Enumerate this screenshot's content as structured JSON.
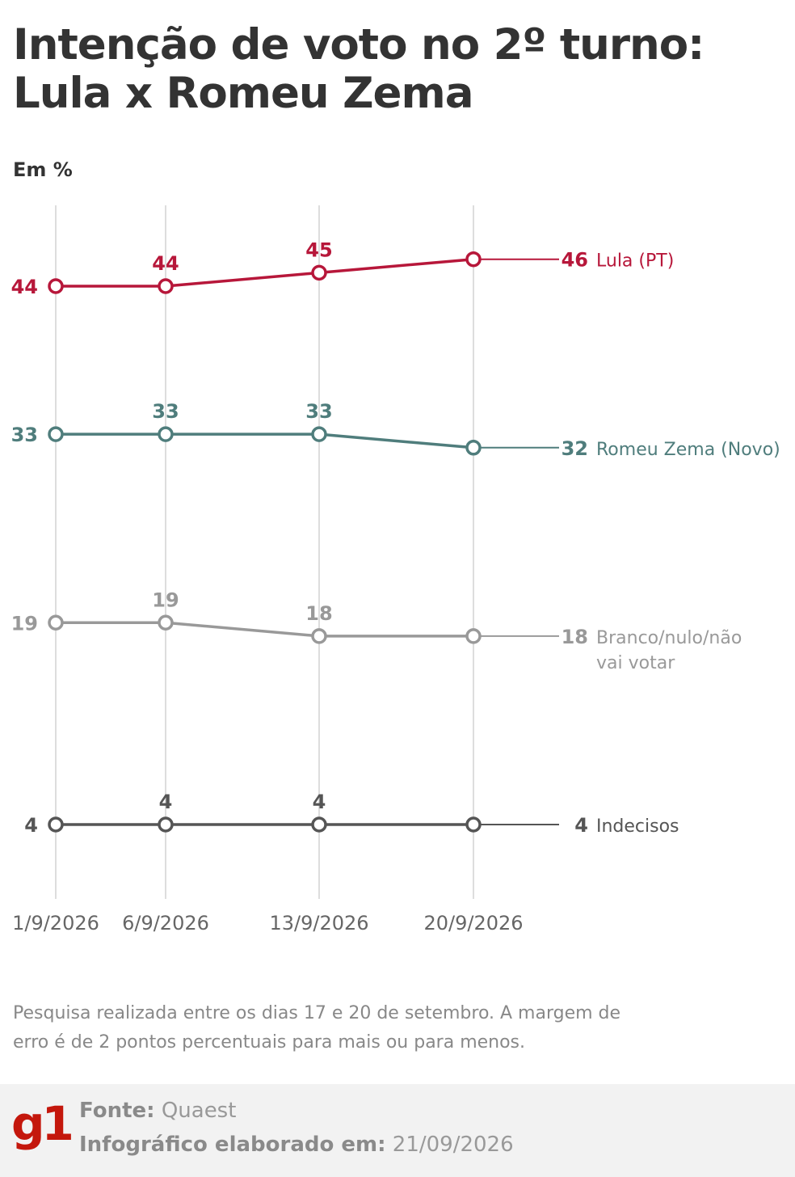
{
  "title": "Intenção de voto no 2º turno: Lula x Romeu Zema",
  "unit": "Em %",
  "note": "Pesquisa realizada entre os dias 17 e 20 de setembro. A margem de erro é de 2 pontos percentuais para mais ou para menos.",
  "footer": {
    "source_label": "Fonte:",
    "source": "Quaest",
    "made_label": "Infográfico elaborado em:",
    "made_date": "21/09/2026",
    "logo": "g1"
  },
  "colors": {
    "lula": "#b7173a",
    "zema": "#4f7d7c",
    "branco": "#999999",
    "indecisos": "#555555",
    "grid": "#dddddd",
    "brand": "#c4170c"
  },
  "chart_data": {
    "type": "line",
    "x": [
      "1/9/2026",
      "6/9/2026",
      "13/9/2026",
      "20/9/2026"
    ],
    "ylim": [
      0,
      50
    ],
    "grid": "vertical",
    "series": [
      {
        "name": "Lula (PT)",
        "values": [
          44,
          44,
          45,
          46
        ],
        "color": "#b7173a"
      },
      {
        "name": "Romeu Zema (Novo)",
        "values": [
          33,
          33,
          33,
          32
        ],
        "color": "#4f7d7c"
      },
      {
        "name": "Branco/nulo/não vai votar",
        "values": [
          19,
          19,
          18,
          18
        ],
        "color": "#999999"
      },
      {
        "name": "Indecisos",
        "values": [
          4,
          4,
          4,
          4
        ],
        "color": "#555555"
      }
    ]
  }
}
